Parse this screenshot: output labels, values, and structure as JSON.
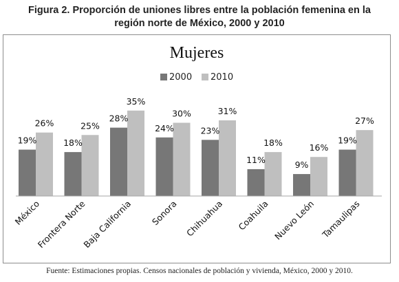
{
  "figure": {
    "title_line1": "Figura 2. Proporción de uniones libres entre la población femenina en la",
    "title_line2": "región norte de México, 2000 y 2010",
    "source": "Fuente: Estimaciones propias. Censos nacionales de población y vivienda, México, 2000 y 2010."
  },
  "chart_data": {
    "type": "bar",
    "title": "Mujeres",
    "categories": [
      "México",
      "Frontera Norte",
      "Baja California",
      "Sonora",
      "Chihuahua",
      "Coahuila",
      "Nuevo León",
      "Tamaulipas"
    ],
    "series": [
      {
        "name": "2000",
        "values": [
          19,
          18,
          28,
          24,
          23,
          11,
          9,
          19
        ],
        "labels": [
          "19%",
          "18%",
          "28%",
          "24%",
          "23%",
          "11%",
          "9%",
          "19%"
        ],
        "color": "#777777"
      },
      {
        "name": "2010",
        "values": [
          26,
          25,
          35,
          30,
          31,
          18,
          16,
          27
        ],
        "labels": [
          "26%",
          "25%",
          "35%",
          "30%",
          "31%",
          "18%",
          "16%",
          "27%"
        ],
        "color": "#bfbfbf"
      }
    ],
    "unit": "%",
    "ylim": [
      0,
      40
    ],
    "legend_position": "top",
    "grid": false,
    "xlabel": "",
    "ylabel": ""
  }
}
